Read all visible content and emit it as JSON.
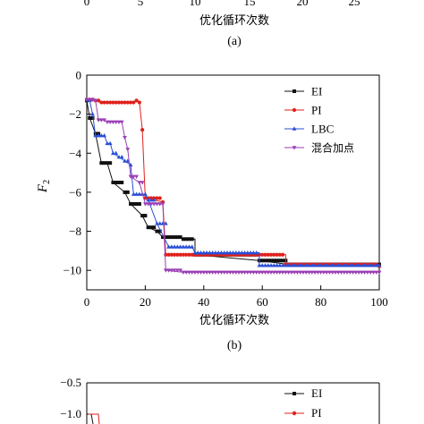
{
  "panel_a": {
    "x_ticks": [
      "0",
      "5",
      "10",
      "15",
      "20",
      "25"
    ],
    "xlabel": "优化循环次数",
    "caption": "(a)"
  },
  "panel_c": {
    "y_ticks": [
      "−0.5",
      "−1.0"
    ],
    "legend": [
      "EI",
      "PI"
    ],
    "colors": {
      "EI": "#111111",
      "PI": "#e0201b"
    }
  },
  "chart_data": {
    "type": "line",
    "xlabel": "优化循环次数",
    "ylabel": "F2",
    "ylabel_base": "F",
    "ylabel_sub": "2",
    "caption": "(b)",
    "xlim": [
      0,
      100
    ],
    "ylim": [
      -11,
      0
    ],
    "x_ticks": [
      0,
      20,
      40,
      60,
      80,
      100
    ],
    "y_ticks": [
      0,
      -2,
      -4,
      -6,
      -8,
      -10
    ],
    "x_tick_labels": [
      "0",
      "20",
      "40",
      "60",
      "80",
      "100"
    ],
    "y_tick_labels": [
      "0",
      "−2",
      "−4",
      "−6",
      "−8",
      "−10"
    ],
    "legend_position": "top-right",
    "grid": false,
    "series": [
      {
        "name": "EI",
        "color": "#111111",
        "marker": "square",
        "points": [
          [
            0,
            -1.3
          ],
          [
            1,
            -2.2
          ],
          [
            3,
            -3.0
          ],
          [
            5,
            -4.5
          ],
          [
            7,
            -4.5
          ],
          [
            9,
            -5.5
          ],
          [
            13,
            -6.0
          ],
          [
            15,
            -6.6
          ],
          [
            19,
            -7.2
          ],
          [
            21,
            -7.8
          ],
          [
            24,
            -8.0
          ],
          [
            26,
            -8.3
          ],
          [
            31,
            -8.3
          ],
          [
            33,
            -8.4
          ],
          [
            37,
            -8.4
          ],
          [
            37,
            -9.2
          ],
          [
            59,
            -9.5
          ],
          [
            69,
            -9.7
          ],
          [
            100,
            -9.7
          ]
        ]
      },
      {
        "name": "PI",
        "color": "#e0201b",
        "marker": "circle",
        "points": [
          [
            0,
            -1.25
          ],
          [
            3,
            -1.3
          ],
          [
            5,
            -1.4
          ],
          [
            16,
            -1.4
          ],
          [
            17,
            -1.3
          ],
          [
            18,
            -1.4
          ],
          [
            19,
            -2.8
          ],
          [
            20,
            -6.3
          ],
          [
            26,
            -6.5
          ],
          [
            27,
            -9.2
          ],
          [
            58,
            -9.2
          ],
          [
            68,
            -9.2
          ],
          [
            68,
            -9.7
          ],
          [
            100,
            -9.8
          ]
        ]
      },
      {
        "name": "LBC",
        "color": "#2a4fd6",
        "marker": "triangle",
        "points": [
          [
            0,
            -1.25
          ],
          [
            1,
            -1.3
          ],
          [
            2,
            -2.0
          ],
          [
            3,
            -3.1
          ],
          [
            6,
            -3.1
          ],
          [
            7,
            -3.5
          ],
          [
            8,
            -3.5
          ],
          [
            9,
            -4.0
          ],
          [
            11,
            -4.2
          ],
          [
            13,
            -4.4
          ],
          [
            15,
            -4.6
          ],
          [
            16,
            -6.1
          ],
          [
            20,
            -6.1
          ],
          [
            21,
            -6.4
          ],
          [
            24,
            -7.6
          ],
          [
            28,
            -8.8
          ],
          [
            36,
            -8.8
          ],
          [
            37,
            -9.1
          ],
          [
            59,
            -9.1
          ],
          [
            59,
            -9.75
          ],
          [
            100,
            -9.75
          ]
        ]
      },
      {
        "name": "混合加点",
        "color": "#9b3fb5",
        "marker": "triangle-down",
        "points": [
          [
            0,
            -1.25
          ],
          [
            3,
            -1.3
          ],
          [
            4,
            -2.3
          ],
          [
            6,
            -2.3
          ],
          [
            7,
            -2.4
          ],
          [
            12,
            -2.4
          ],
          [
            13,
            -3.2
          ],
          [
            14,
            -3.8
          ],
          [
            15,
            -5.2
          ],
          [
            18,
            -5.5
          ],
          [
            20,
            -6.6
          ],
          [
            26,
            -6.6
          ],
          [
            27,
            -10.0
          ],
          [
            33,
            -10.1
          ],
          [
            100,
            -10.1
          ]
        ]
      }
    ]
  }
}
